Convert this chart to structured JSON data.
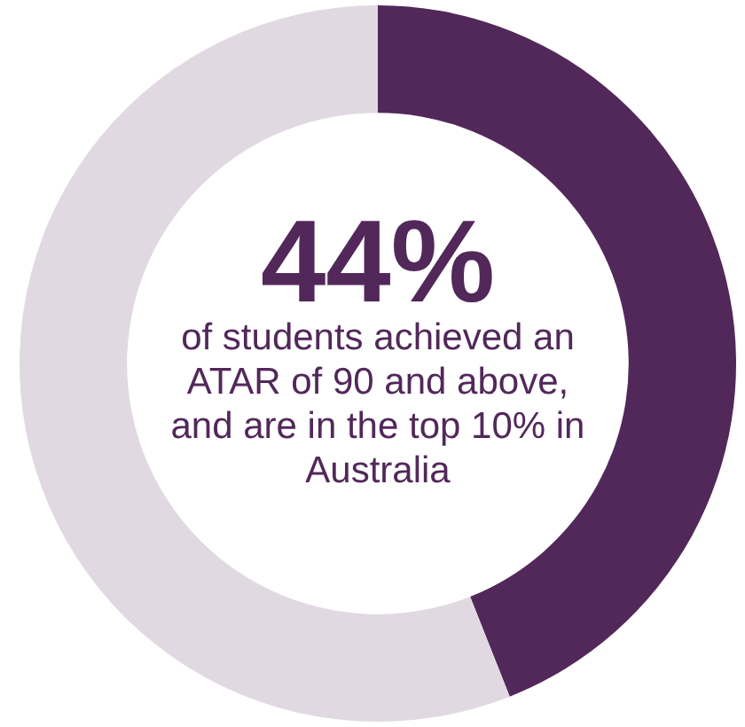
{
  "chart_data": {
    "type": "donut",
    "categories": [
      null,
      null
    ],
    "values": [
      44,
      56
    ],
    "colors": [
      "#52285a",
      "#e1d9e1"
    ],
    "value_labels": [
      "44%",
      null
    ],
    "annotations": [
      "of students achieved an ATAR of 90 and above, and are in the top 10% in Australia"
    ],
    "legend": false
  }
}
